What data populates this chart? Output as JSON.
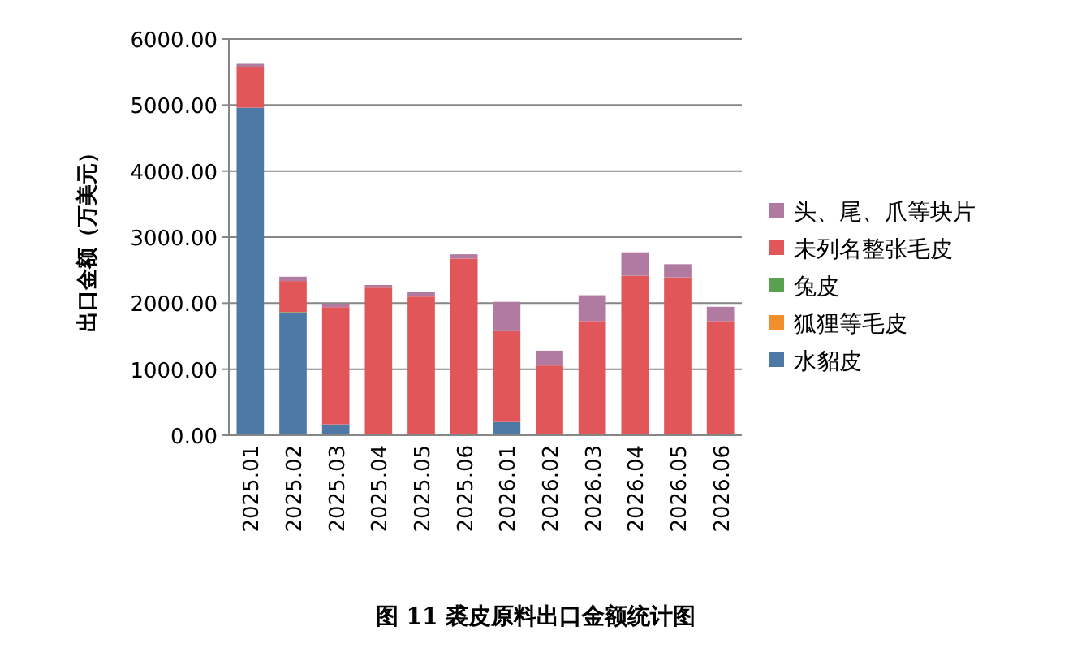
{
  "chart_data": {
    "type": "bar",
    "stacked": true,
    "title": "图 11 裘皮原料出口金额统计图",
    "ylabel": "出口金额（万美元）",
    "categories": [
      "2025.01",
      "2025.02",
      "2025.03",
      "2025.04",
      "2025.05",
      "2025.06",
      "2026.01",
      "2026.02",
      "2026.03",
      "2026.04",
      "2026.05",
      "2026.06"
    ],
    "series": [
      {
        "name": "水貂皮",
        "color": "#4e79a7",
        "values": [
          4960,
          1850,
          165,
          0,
          0,
          0,
          200,
          0,
          0,
          0,
          0,
          0
        ]
      },
      {
        "name": "狐狸等毛皮",
        "color": "#f28e2b",
        "values": [
          0,
          0,
          0,
          0,
          0,
          0,
          0,
          0,
          0,
          0,
          0,
          0
        ]
      },
      {
        "name": "兔皮",
        "color": "#59a14f",
        "values": [
          0,
          15,
          0,
          0,
          0,
          0,
          0,
          0,
          0,
          0,
          0,
          0
        ]
      },
      {
        "name": "未列名整张毛皮",
        "color": "#e15759",
        "values": [
          615,
          470,
          1775,
          2235,
          2100,
          2675,
          1375,
          1055,
          1730,
          2415,
          2390,
          1730
        ]
      },
      {
        "name": "头、尾、爪等块片",
        "color": "#b07aa1",
        "values": [
          50,
          65,
          55,
          40,
          75,
          65,
          445,
          225,
          390,
          355,
          200,
          215
        ]
      }
    ],
    "ylim": [
      0,
      6000
    ],
    "yticks": [
      {
        "value": 0,
        "label": "0.00"
      },
      {
        "value": 1000,
        "label": "1000.00"
      },
      {
        "value": 2000,
        "label": "2000.00"
      },
      {
        "value": 3000,
        "label": "3000.00"
      },
      {
        "value": 4000,
        "label": "4000.00"
      },
      {
        "value": 5000,
        "label": "5000.00"
      },
      {
        "value": 6000,
        "label": "6000.00"
      }
    ],
    "grid": "y",
    "legend": "right"
  }
}
